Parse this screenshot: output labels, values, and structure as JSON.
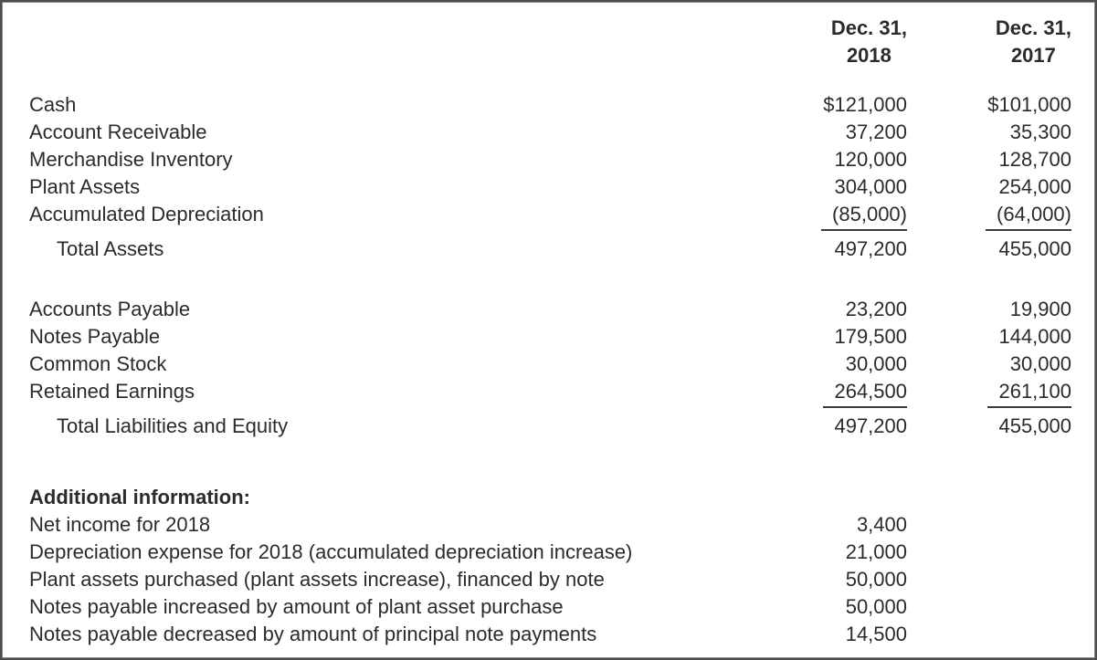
{
  "colors": {
    "text": "#2b2b2b",
    "border": "#4c4c4c",
    "underline": "#3c3c3c",
    "background": "#ffffff"
  },
  "header": {
    "col_2018": {
      "line1": "Dec. 31,",
      "line2": "2018"
    },
    "col_2017": {
      "line1": "Dec. 31,",
      "line2": "2017"
    }
  },
  "assets": {
    "rows": [
      {
        "label": "Cash",
        "v2018": "$121,000",
        "v2017": "$101,000"
      },
      {
        "label": "Account Receivable",
        "v2018": "37,200",
        "v2017": "35,300"
      },
      {
        "label": "Merchandise Inventory",
        "v2018": "120,000",
        "v2017": "128,700"
      },
      {
        "label": "Plant Assets",
        "v2018": "304,000",
        "v2017": "254,000"
      },
      {
        "label": "Accumulated Depreciation",
        "v2018": "(85,000)",
        "v2017": "(64,000)"
      }
    ],
    "total": {
      "label": "Total Assets",
      "v2018": "497,200",
      "v2017": "455,000"
    }
  },
  "liabilities": {
    "rows": [
      {
        "label": "Accounts Payable",
        "v2018": "23,200",
        "v2017": "19,900"
      },
      {
        "label": "Notes Payable",
        "v2018": "179,500",
        "v2017": "144,000"
      },
      {
        "label": "Common Stock",
        "v2018": "30,000",
        "v2017": "30,000"
      },
      {
        "label": "Retained Earnings",
        "v2018": "264,500",
        "v2017": "261,100"
      }
    ],
    "total": {
      "label": "Total Liabilities and Equity",
      "v2018": "497,200",
      "v2017": "455,000"
    }
  },
  "additional": {
    "heading": "Additional information:",
    "rows": [
      {
        "label": "Net income for 2018",
        "value": "3,400"
      },
      {
        "label": "Depreciation expense for 2018 (accumulated depreciation increase)",
        "value": "21,000"
      },
      {
        "label": "Plant assets purchased (plant assets increase), financed by note",
        "value": "50,000"
      },
      {
        "label": "Notes payable increased by amount of plant asset purchase",
        "value": "50,000"
      },
      {
        "label": "Notes payable decreased by amount of principal note payments",
        "value": "14,500"
      }
    ]
  }
}
